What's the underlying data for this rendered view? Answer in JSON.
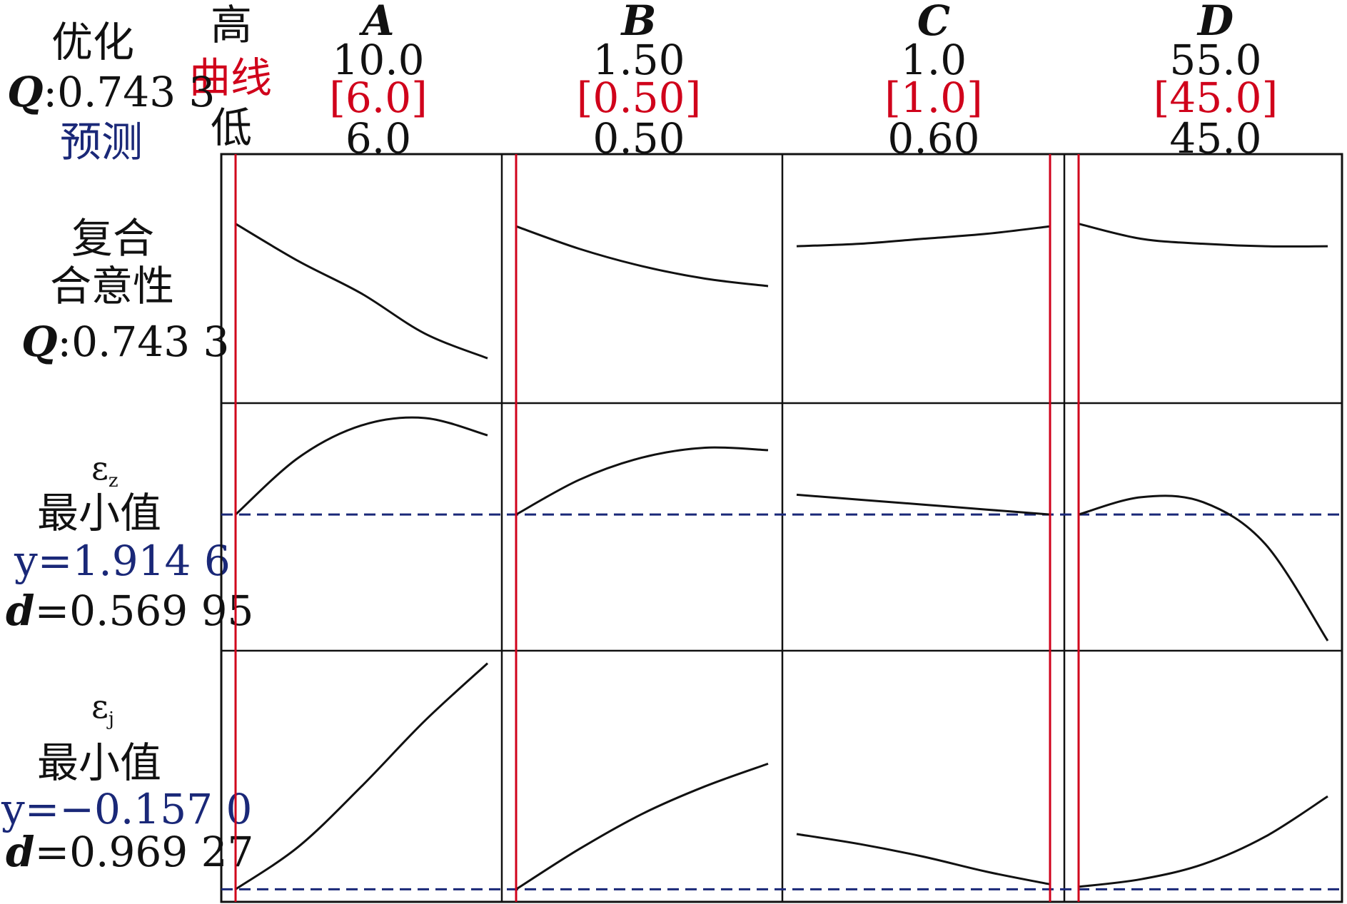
{
  "header": {
    "optimize_label": "优化",
    "high_label": "高",
    "curve_label": "曲线",
    "low_label": "低",
    "predict_label": "预测",
    "q_letter": "Q",
    "q_value": ":0.743 3"
  },
  "factors": [
    {
      "name": "A",
      "high": "10.0",
      "current": "[6.0]",
      "low": "6.0",
      "range": [
        6.0,
        10.0
      ],
      "setting": 6.0
    },
    {
      "name": "B",
      "high": "1.50",
      "current": "[0.50]",
      "low": "0.50",
      "range": [
        0.5,
        1.5
      ],
      "setting": 0.5
    },
    {
      "name": "C",
      "high": "1.0",
      "current": "[1.0]",
      "low": "0.60",
      "range": [
        0.6,
        1.0
      ],
      "setting": 1.0
    },
    {
      "name": "D",
      "high": "55.0",
      "current": "[45.0]",
      "low": "45.0",
      "range": [
        45.0,
        55.0
      ],
      "setting": 45.0
    }
  ],
  "rows": [
    {
      "title_line1": "复合",
      "title_line2": "合意性",
      "q_letter": "Q",
      "q_value": ":0.743 3"
    },
    {
      "symbol": "ε",
      "subscript": "z",
      "goal": "最小值",
      "y_text": "y=1.914 6",
      "d_letter": "d",
      "d_value": "=0.569 95"
    },
    {
      "symbol": "ε",
      "subscript": "j",
      "goal": "最小值",
      "y_text": "y=−0.157 0",
      "d_letter": "d",
      "d_value": "=0.969 27"
    }
  ],
  "colors": {
    "setting_line": "#d0021b",
    "prediction_line": "#1a2878",
    "curve": "#111111",
    "frame": "#111111"
  },
  "chart_data": {
    "type": "line",
    "note_axes": "x in factor units; y in relative panel units 0 (bottom) to 1 (top)",
    "panels": [
      {
        "row": 0,
        "factor": "A",
        "x": [
          6.0,
          7.0,
          8.0,
          9.0,
          10.0
        ],
        "y": [
          0.72,
          0.57,
          0.44,
          0.28,
          0.18
        ]
      },
      {
        "row": 0,
        "factor": "B",
        "x": [
          0.5,
          0.75,
          1.0,
          1.25,
          1.5
        ],
        "y": [
          0.71,
          0.62,
          0.55,
          0.5,
          0.47
        ]
      },
      {
        "row": 0,
        "factor": "C",
        "x": [
          0.6,
          0.7,
          0.8,
          0.9,
          1.0
        ],
        "y": [
          0.63,
          0.64,
          0.66,
          0.68,
          0.71
        ]
      },
      {
        "row": 0,
        "factor": "D",
        "x": [
          45.0,
          47.5,
          50.0,
          52.5,
          55.0
        ],
        "y": [
          0.72,
          0.66,
          0.64,
          0.63,
          0.63
        ]
      },
      {
        "row": 1,
        "factor": "A",
        "x": [
          6.0,
          7.0,
          8.0,
          9.0,
          10.0
        ],
        "y": [
          0.55,
          0.78,
          0.91,
          0.94,
          0.87
        ]
      },
      {
        "row": 1,
        "factor": "B",
        "x": [
          0.5,
          0.75,
          1.0,
          1.25,
          1.5
        ],
        "y": [
          0.55,
          0.69,
          0.78,
          0.82,
          0.81
        ]
      },
      {
        "row": 1,
        "factor": "C",
        "x": [
          0.6,
          0.7,
          0.8,
          0.9,
          1.0
        ],
        "y": [
          0.63,
          0.61,
          0.59,
          0.57,
          0.55
        ]
      },
      {
        "row": 1,
        "factor": "D",
        "x": [
          45.0,
          47.5,
          50.0,
          52.5,
          55.0
        ],
        "y": [
          0.55,
          0.62,
          0.6,
          0.43,
          0.04
        ]
      },
      {
        "row": 2,
        "factor": "A",
        "x": [
          6.0,
          7.0,
          8.0,
          9.0,
          10.0
        ],
        "y": [
          0.05,
          0.22,
          0.46,
          0.72,
          0.95
        ]
      },
      {
        "row": 2,
        "factor": "B",
        "x": [
          0.5,
          0.75,
          1.0,
          1.25,
          1.5
        ],
        "y": [
          0.05,
          0.21,
          0.35,
          0.46,
          0.55
        ]
      },
      {
        "row": 2,
        "factor": "C",
        "x": [
          0.6,
          0.7,
          0.8,
          0.9,
          1.0
        ],
        "y": [
          0.27,
          0.23,
          0.18,
          0.12,
          0.07
        ]
      },
      {
        "row": 2,
        "factor": "D",
        "x": [
          45.0,
          47.5,
          50.0,
          52.5,
          55.0
        ],
        "y": [
          0.06,
          0.09,
          0.15,
          0.26,
          0.42
        ]
      }
    ],
    "prediction_levels": [
      null,
      0.55,
      0.05
    ]
  }
}
